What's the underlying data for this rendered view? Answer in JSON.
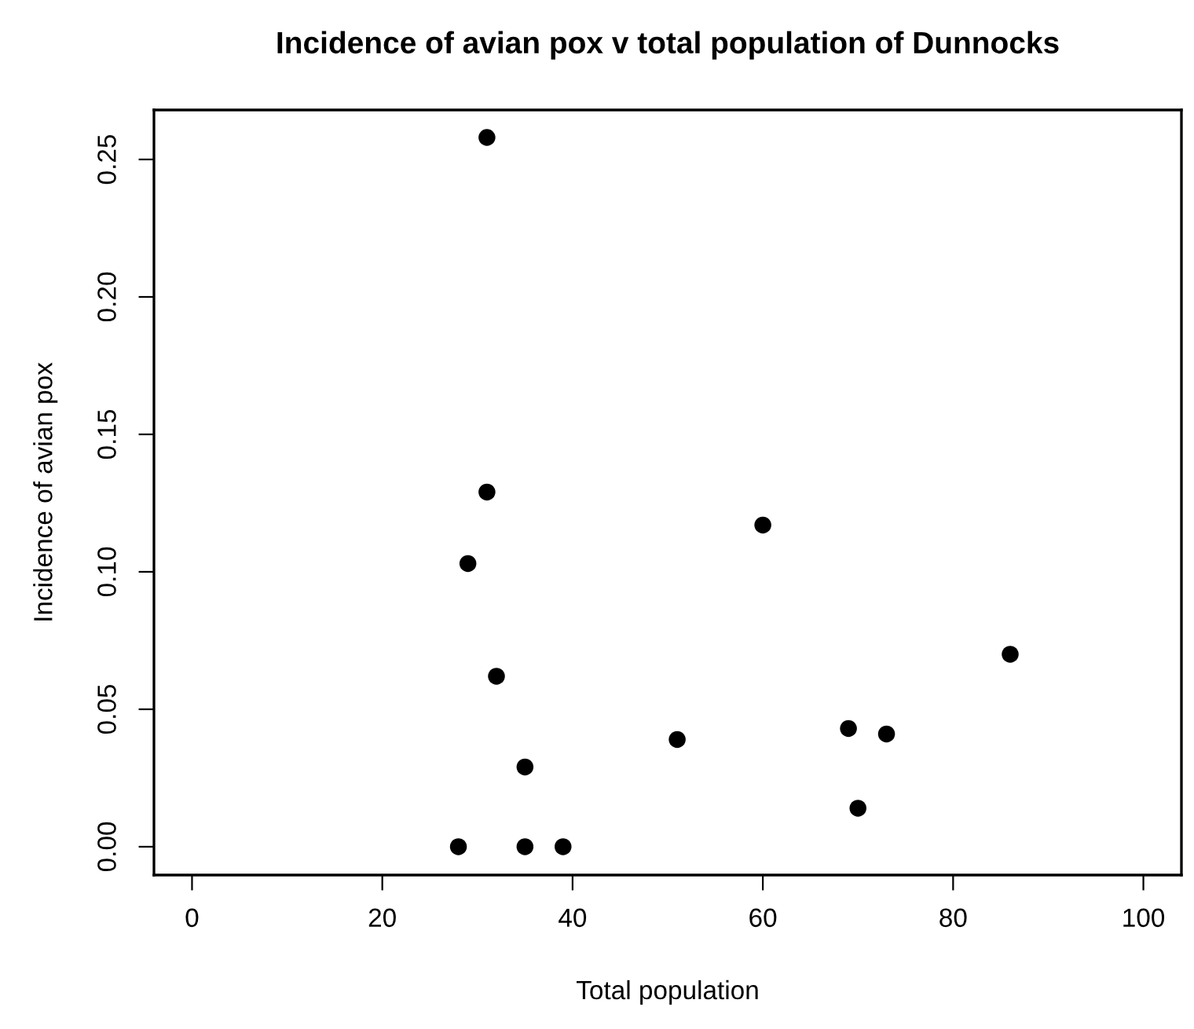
{
  "chart_data": {
    "type": "scatter",
    "title": "Incidence of avian pox v total population of Dunnocks",
    "xlabel": "Total population",
    "ylabel": "Incidence of avian pox",
    "x": [
      28,
      31,
      31,
      29,
      32,
      35,
      35,
      39,
      51,
      60,
      69,
      70,
      73,
      86
    ],
    "values": [
      0,
      0.258,
      0.129,
      0.103,
      0.062,
      0.029,
      0,
      0,
      0.039,
      0.117,
      0.043,
      0.014,
      0.041,
      0.07
    ],
    "color": "#000000",
    "marker": "circle",
    "xlim": [
      -4,
      104
    ],
    "xticks": [
      0,
      20,
      40,
      60,
      80,
      100
    ],
    "ylim": [
      -0.0103,
      0.268
    ],
    "yticks": [
      {
        "value": 0,
        "label": "0.00"
      },
      {
        "value": 0.05,
        "label": "0.05"
      },
      {
        "value": 0.1,
        "label": "0.10"
      },
      {
        "value": 0.15,
        "label": "0.15"
      },
      {
        "value": 0.2,
        "label": "0.20"
      },
      {
        "value": 0.25,
        "label": "0.25"
      }
    ],
    "grid": false
  }
}
